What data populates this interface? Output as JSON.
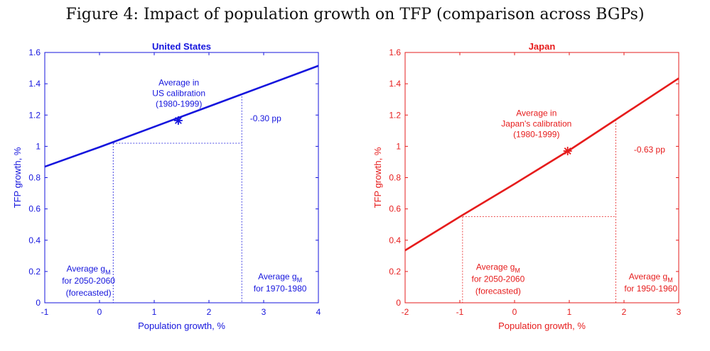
{
  "figure": {
    "title": "Figure 4: Impact of population growth on TFP (comparison across BGPs)"
  },
  "chart_data": [
    {
      "type": "line",
      "title": "United States",
      "xlabel": "Population growth, %",
      "ylabel": "TFP growth, %",
      "color": "#1515dd",
      "xlim": [
        -1,
        4
      ],
      "ylim": [
        0,
        1.6
      ],
      "xticks": [
        -1,
        0,
        1,
        2,
        3,
        4
      ],
      "yticks": [
        0,
        0.2,
        0.4,
        0.6,
        0.8,
        1,
        1.2,
        1.4,
        1.6
      ],
      "ytick_labels": [
        "0",
        "0.2",
        "0.4",
        "0.6",
        "0.8",
        "1",
        "1.2",
        "1.4",
        "1.6"
      ],
      "series": [
        {
          "name": "TFP growth",
          "x": [
            -1,
            0,
            1,
            2,
            3,
            4
          ],
          "y": [
            0.87,
            0.995,
            1.125,
            1.255,
            1.385,
            1.515
          ]
        }
      ],
      "marker": {
        "x": 1.44,
        "y": 1.165,
        "label": "Average in US calibration (1980-1999)",
        "label_lines": [
          "Average in",
          "US calibration",
          "(1980-1999)"
        ]
      },
      "dashed_low": {
        "x": 0.25,
        "y": 1.02
      },
      "dashed_high": {
        "x": 2.6,
        "y": 1.32
      },
      "difference_label": "-0.30 pp",
      "difference_pos": {
        "x": 2.75,
        "y": 1.16
      },
      "annotations": [
        {
          "lines": [
            "Average g",
            "for 2050-2060",
            "(forecasted)"
          ],
          "subscript": "M",
          "x": -0.2,
          "y_top": 0.2,
          "align": "middle"
        },
        {
          "lines": [
            "Average g",
            "for 1970-1980"
          ],
          "subscript": "M",
          "x": 3.3,
          "y_top": 0.15,
          "align": "middle"
        }
      ]
    },
    {
      "type": "line",
      "title": "Japan",
      "xlabel": "Population growth, %",
      "ylabel": "TFP growth, %",
      "color": "#e61c1c",
      "xlim": [
        -2,
        3
      ],
      "ylim": [
        0,
        1.6
      ],
      "xticks": [
        -2,
        -1,
        0,
        1,
        2,
        3
      ],
      "yticks": [
        0,
        0.2,
        0.4,
        0.6,
        0.8,
        1,
        1.2,
        1.4,
        1.6
      ],
      "ytick_labels": [
        "0",
        "0.2",
        "0.4",
        "0.6",
        "0.8",
        "1",
        "1.2",
        "1.4",
        "1.6"
      ],
      "series": [
        {
          "name": "TFP growth",
          "x": [
            -2,
            -1,
            0,
            1,
            2,
            3
          ],
          "y": [
            0.335,
            0.55,
            0.76,
            0.975,
            1.205,
            1.435
          ]
        }
      ],
      "marker": {
        "x": 0.97,
        "y": 0.97,
        "label": "Average in Japan's calibration (1980-1999)",
        "label_lines": [
          "Average in",
          "Japan's calibration",
          "(1980-1999)"
        ]
      },
      "dashed_low": {
        "x": -0.95,
        "y": 0.55
      },
      "dashed_high": {
        "x": 1.85,
        "y": 1.17
      },
      "difference_label": "-0.63 pp",
      "difference_pos": {
        "x": 2.18,
        "y": 0.96
      },
      "annotations": [
        {
          "lines": [
            "Average g",
            "for 2050-2060",
            "(forecasted)"
          ],
          "subscript": "M",
          "x": -0.3,
          "y_top": 0.21,
          "align": "middle"
        },
        {
          "lines": [
            "Average g",
            "for 1950-1960"
          ],
          "subscript": "M",
          "x": 2.49,
          "y_top": 0.15,
          "align": "middle"
        }
      ]
    }
  ]
}
